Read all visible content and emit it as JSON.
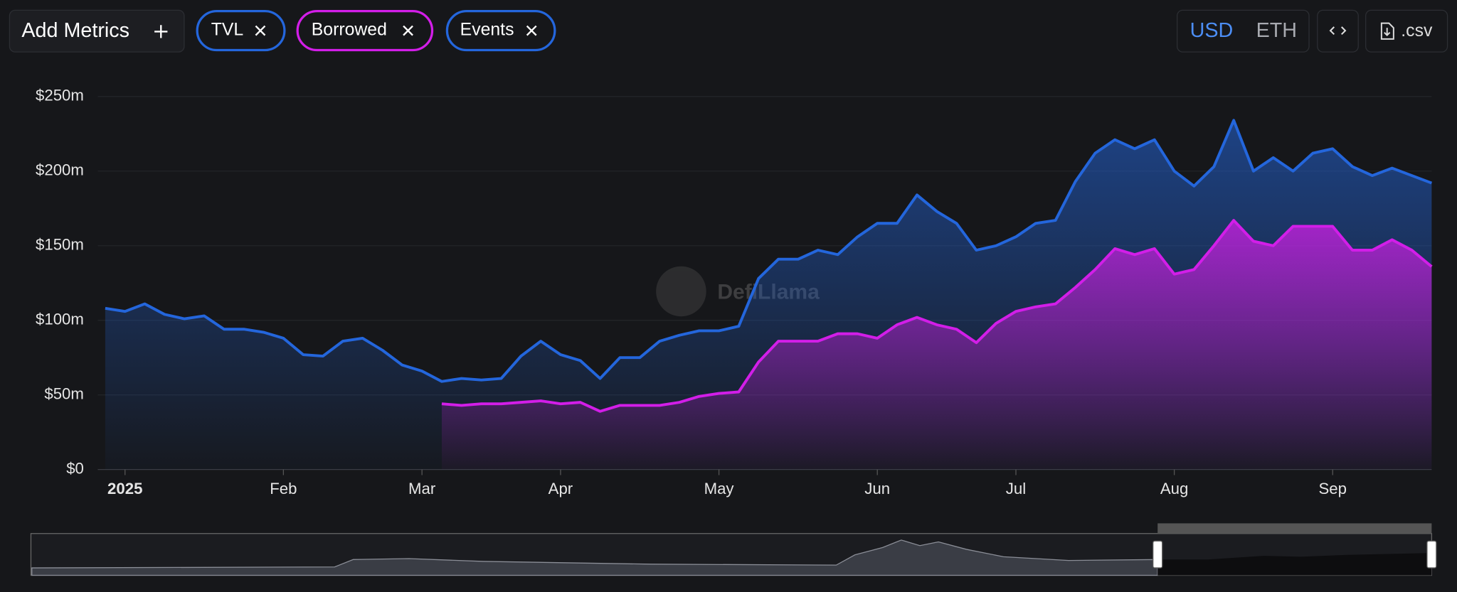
{
  "toolbar": {
    "add_metrics": "Add Metrics",
    "events": "Events",
    "currencies": [
      "USD",
      "ETH"
    ],
    "export": ".csv"
  },
  "watermark": "DefiLlama",
  "chart_data": {
    "type": "area",
    "categories": [
      null,
      "2025",
      null,
      null,
      null,
      null,
      null,
      null,
      null,
      "Feb",
      null,
      null,
      null,
      null,
      null,
      null,
      "Mar",
      null,
      null,
      null,
      null,
      null,
      null,
      "Apr",
      null,
      null,
      null,
      null,
      null,
      null,
      null,
      "May",
      null,
      null,
      null,
      null,
      null,
      null,
      null,
      "Jun",
      null,
      null,
      null,
      null,
      null,
      null,
      "Jul",
      null,
      null,
      null,
      null,
      null,
      null,
      null,
      "Aug",
      null,
      null,
      null,
      null,
      null,
      null,
      null,
      "Sep",
      null,
      null,
      null,
      null,
      null
    ],
    "series": [
      {
        "name": "TVL",
        "color": "#2466dc",
        "values": [
          108,
          106,
          111,
          104,
          101,
          103,
          94,
          94,
          92,
          88,
          77,
          76,
          86,
          88,
          80,
          70,
          66,
          59,
          61,
          60,
          61,
          76,
          86,
          77,
          73,
          61,
          75,
          75,
          86,
          90,
          93,
          93,
          96,
          128,
          141,
          141,
          147,
          144,
          156,
          165,
          165,
          184,
          173,
          165,
          147,
          150,
          156,
          165,
          167,
          193,
          212,
          221,
          215,
          221,
          200,
          190,
          203,
          234,
          200,
          209,
          200,
          212,
          215,
          203,
          197,
          202,
          197,
          192
        ]
      },
      {
        "name": "Borrowed",
        "color": "#d21ee8",
        "values": [
          null,
          null,
          null,
          null,
          null,
          null,
          null,
          null,
          null,
          null,
          null,
          null,
          null,
          null,
          null,
          null,
          null,
          44,
          43,
          44,
          44,
          45,
          46,
          44,
          45,
          39,
          43,
          43,
          43,
          45,
          49,
          51,
          52,
          72,
          86,
          86,
          86,
          91,
          91,
          88,
          97,
          102,
          97,
          94,
          85,
          98,
          106,
          109,
          111,
          122,
          134,
          148,
          144,
          148,
          131,
          134,
          150,
          167,
          153,
          150,
          163,
          163,
          163,
          147,
          147,
          154,
          147,
          136
        ]
      }
    ],
    "ylim": [
      0,
      250
    ],
    "yticks": [
      {
        "value": 0,
        "label": "$0"
      },
      {
        "value": 50,
        "label": "$50m"
      },
      {
        "value": 100,
        "label": "$100m"
      },
      {
        "value": 150,
        "label": "$150m"
      },
      {
        "value": 200,
        "label": "$200m"
      },
      {
        "value": 250,
        "label": "$250m"
      }
    ],
    "grid": true
  }
}
